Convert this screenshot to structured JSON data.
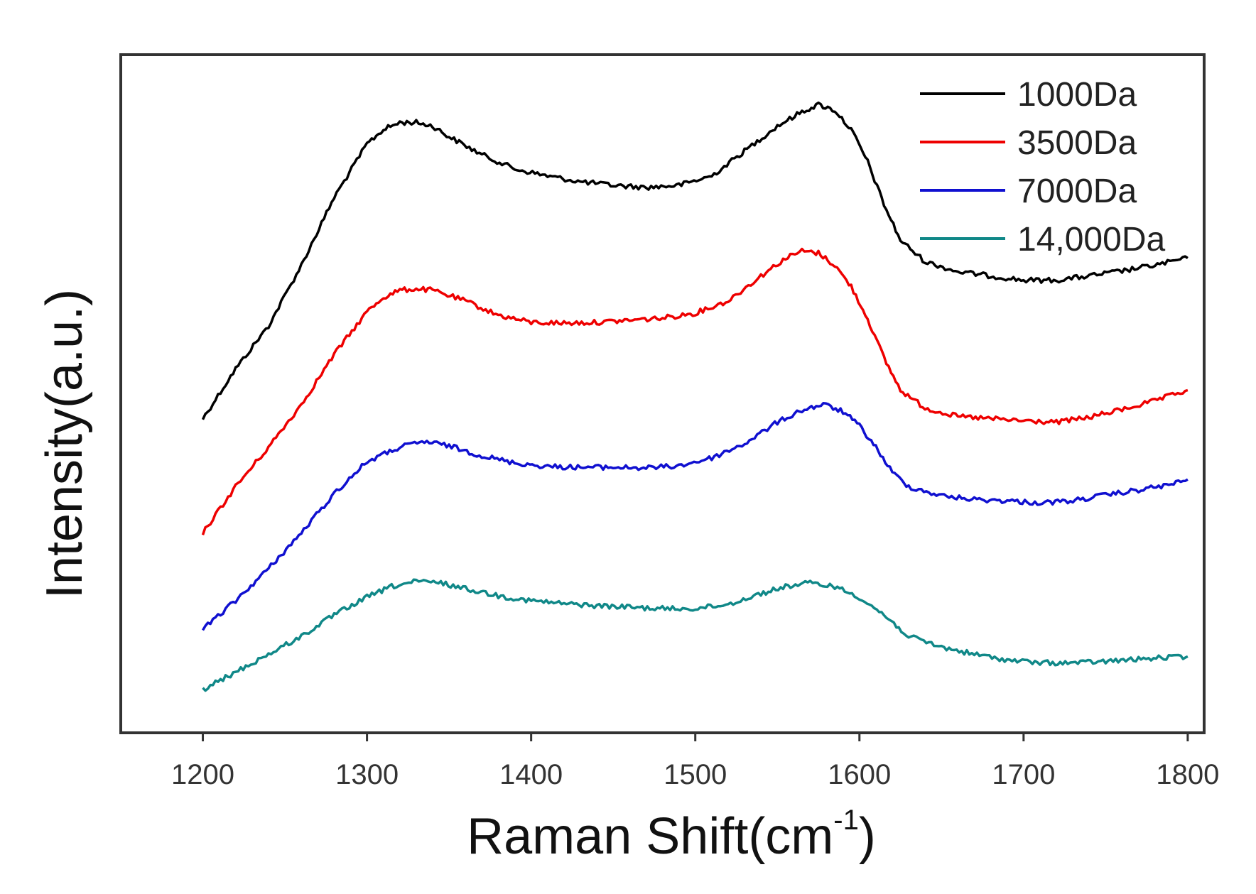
{
  "chart_data": {
    "type": "line",
    "title": "",
    "xlabel": "Raman Shift(cm",
    "xlabel_superscript": "-1",
    "xlabel_suffix": ")",
    "ylabel": "Intensity(a.u.)",
    "xlim": [
      1150,
      1810
    ],
    "x_ticks": [
      1200,
      1300,
      1400,
      1500,
      1600,
      1700,
      1800
    ],
    "y_ticks_shown": false,
    "grid": false,
    "legend_position": "top-right",
    "series": [
      {
        "name": "1000Da",
        "color": "#000000",
        "points": [
          [
            1200,
            6.9
          ],
          [
            1220,
            7.6
          ],
          [
            1240,
            8.2
          ],
          [
            1260,
            9.05
          ],
          [
            1280,
            10.0
          ],
          [
            1300,
            10.75
          ],
          [
            1310,
            10.95
          ],
          [
            1320,
            11.05
          ],
          [
            1330,
            11.05
          ],
          [
            1340,
            11.0
          ],
          [
            1350,
            10.85
          ],
          [
            1370,
            10.6
          ],
          [
            1390,
            10.4
          ],
          [
            1410,
            10.3
          ],
          [
            1430,
            10.22
          ],
          [
            1450,
            10.17
          ],
          [
            1470,
            10.14
          ],
          [
            1490,
            10.17
          ],
          [
            1510,
            10.3
          ],
          [
            1530,
            10.65
          ],
          [
            1550,
            11.0
          ],
          [
            1565,
            11.2
          ],
          [
            1575,
            11.3
          ],
          [
            1585,
            11.22
          ],
          [
            1595,
            10.95
          ],
          [
            1605,
            10.5
          ],
          [
            1615,
            9.9
          ],
          [
            1625,
            9.4
          ],
          [
            1640,
            9.1
          ],
          [
            1660,
            8.96
          ],
          [
            1680,
            8.9
          ],
          [
            1700,
            8.84
          ],
          [
            1720,
            8.84
          ],
          [
            1740,
            8.9
          ],
          [
            1760,
            8.97
          ],
          [
            1780,
            9.05
          ],
          [
            1800,
            9.15
          ]
        ]
      },
      {
        "name": "3500Da",
        "color": "#ee0000",
        "points": [
          [
            1200,
            5.3
          ],
          [
            1220,
            5.95
          ],
          [
            1240,
            6.5
          ],
          [
            1260,
            7.1
          ],
          [
            1280,
            7.8
          ],
          [
            1300,
            8.4
          ],
          [
            1310,
            8.6
          ],
          [
            1320,
            8.7
          ],
          [
            1330,
            8.72
          ],
          [
            1340,
            8.7
          ],
          [
            1360,
            8.55
          ],
          [
            1380,
            8.35
          ],
          [
            1400,
            8.25
          ],
          [
            1420,
            8.24
          ],
          [
            1440,
            8.25
          ],
          [
            1460,
            8.28
          ],
          [
            1480,
            8.31
          ],
          [
            1500,
            8.38
          ],
          [
            1520,
            8.55
          ],
          [
            1540,
            8.9
          ],
          [
            1555,
            9.15
          ],
          [
            1565,
            9.25
          ],
          [
            1575,
            9.22
          ],
          [
            1585,
            9.05
          ],
          [
            1595,
            8.75
          ],
          [
            1605,
            8.3
          ],
          [
            1615,
            7.75
          ],
          [
            1625,
            7.3
          ],
          [
            1640,
            7.05
          ],
          [
            1660,
            6.93
          ],
          [
            1680,
            6.9
          ],
          [
            1700,
            6.87
          ],
          [
            1720,
            6.85
          ],
          [
            1740,
            6.92
          ],
          [
            1760,
            7.03
          ],
          [
            1780,
            7.15
          ],
          [
            1800,
            7.3
          ]
        ]
      },
      {
        "name": "7000Da",
        "color": "#1010d0",
        "points": [
          [
            1200,
            3.95
          ],
          [
            1220,
            4.35
          ],
          [
            1240,
            4.8
          ],
          [
            1260,
            5.3
          ],
          [
            1280,
            5.85
          ],
          [
            1300,
            6.3
          ],
          [
            1320,
            6.5
          ],
          [
            1335,
            6.58
          ],
          [
            1350,
            6.52
          ],
          [
            1370,
            6.38
          ],
          [
            1390,
            6.28
          ],
          [
            1410,
            6.23
          ],
          [
            1430,
            6.22
          ],
          [
            1450,
            6.22
          ],
          [
            1470,
            6.21
          ],
          [
            1490,
            6.24
          ],
          [
            1510,
            6.35
          ],
          [
            1530,
            6.55
          ],
          [
            1550,
            6.85
          ],
          [
            1565,
            7.02
          ],
          [
            1578,
            7.1
          ],
          [
            1590,
            7.0
          ],
          [
            1600,
            6.8
          ],
          [
            1610,
            6.5
          ],
          [
            1620,
            6.15
          ],
          [
            1630,
            5.95
          ],
          [
            1650,
            5.82
          ],
          [
            1670,
            5.77
          ],
          [
            1690,
            5.75
          ],
          [
            1710,
            5.72
          ],
          [
            1730,
            5.75
          ],
          [
            1750,
            5.83
          ],
          [
            1770,
            5.9
          ],
          [
            1790,
            5.98
          ],
          [
            1800,
            6.05
          ]
        ]
      },
      {
        "name": "14,000Da",
        "color": "#108888",
        "points": [
          [
            1200,
            3.1
          ],
          [
            1220,
            3.35
          ],
          [
            1240,
            3.6
          ],
          [
            1260,
            3.85
          ],
          [
            1280,
            4.15
          ],
          [
            1300,
            4.4
          ],
          [
            1315,
            4.55
          ],
          [
            1330,
            4.62
          ],
          [
            1345,
            4.6
          ],
          [
            1360,
            4.52
          ],
          [
            1380,
            4.42
          ],
          [
            1400,
            4.35
          ],
          [
            1420,
            4.31
          ],
          [
            1440,
            4.28
          ],
          [
            1460,
            4.26
          ],
          [
            1480,
            4.24
          ],
          [
            1500,
            4.24
          ],
          [
            1520,
            4.3
          ],
          [
            1540,
            4.45
          ],
          [
            1555,
            4.55
          ],
          [
            1570,
            4.6
          ],
          [
            1585,
            4.55
          ],
          [
            1600,
            4.4
          ],
          [
            1615,
            4.15
          ],
          [
            1630,
            3.85
          ],
          [
            1650,
            3.7
          ],
          [
            1670,
            3.6
          ],
          [
            1690,
            3.52
          ],
          [
            1710,
            3.48
          ],
          [
            1730,
            3.48
          ],
          [
            1750,
            3.5
          ],
          [
            1770,
            3.53
          ],
          [
            1790,
            3.56
          ],
          [
            1800,
            3.57
          ]
        ]
      }
    ]
  }
}
